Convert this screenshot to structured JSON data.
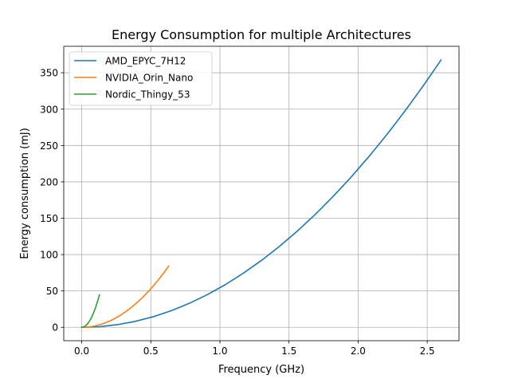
{
  "chart_data": {
    "type": "line",
    "title": "Energy Consumption for multiple Architectures",
    "xlabel": "Frequency (GHz)",
    "ylabel": "Energy consumption (mJ)",
    "xlim": [
      -0.13,
      2.73
    ],
    "ylim": [
      -18.4,
      386.4
    ],
    "xticks": [
      0.0,
      0.5,
      1.0,
      1.5,
      2.0,
      2.5
    ],
    "xtick_labels": [
      "0.0",
      "0.5",
      "1.0",
      "1.5",
      "2.0",
      "2.5"
    ],
    "yticks": [
      0,
      50,
      100,
      150,
      200,
      250,
      300,
      350
    ],
    "ytick_labels": [
      "0",
      "50",
      "100",
      "150",
      "200",
      "250",
      "300",
      "350"
    ],
    "grid": true,
    "legend_position": "top-left",
    "series": [
      {
        "name": "AMD_EPYC_7H12",
        "color": "#1f77b4",
        "x": [
          0.0,
          0.13,
          0.26,
          0.39,
          0.52,
          0.65,
          0.78,
          0.91,
          1.04,
          1.17,
          1.3,
          1.43,
          1.56,
          1.69,
          1.82,
          1.95,
          2.08,
          2.21,
          2.34,
          2.47,
          2.6
        ],
        "y": [
          0.0,
          0.9,
          3.7,
          8.3,
          14.7,
          23.0,
          33.1,
          45.0,
          58.8,
          74.5,
          91.9,
          111.2,
          132.3,
          155.3,
          180.1,
          206.7,
          235.2,
          265.5,
          297.7,
          331.7,
          367.5
        ]
      },
      {
        "name": "NVIDIA_Orin_Nano",
        "color": "#ff7f0e",
        "x": [
          0.0,
          0.0315,
          0.063,
          0.0945,
          0.126,
          0.1575,
          0.189,
          0.2205,
          0.252,
          0.2835,
          0.315,
          0.3465,
          0.378,
          0.4095,
          0.441,
          0.4725,
          0.504,
          0.5355,
          0.567,
          0.5985,
          0.63
        ],
        "y": [
          0.0,
          0.2,
          0.8,
          1.9,
          3.4,
          5.3,
          7.6,
          10.3,
          13.5,
          17.1,
          21.1,
          25.5,
          30.4,
          35.6,
          41.3,
          47.4,
          53.9,
          60.9,
          68.3,
          76.1,
          84.3
        ]
      },
      {
        "name": "Nordic_Thingy_53",
        "color": "#2ca02c",
        "x": [
          0.0,
          0.0128,
          0.0256,
          0.0384,
          0.0512,
          0.064,
          0.0768,
          0.0896,
          0.1024,
          0.1152,
          0.128
        ],
        "y": [
          0.0,
          0.4,
          1.8,
          4.0,
          7.1,
          11.1,
          16.0,
          21.8,
          28.5,
          36.1,
          44.5
        ]
      }
    ]
  }
}
